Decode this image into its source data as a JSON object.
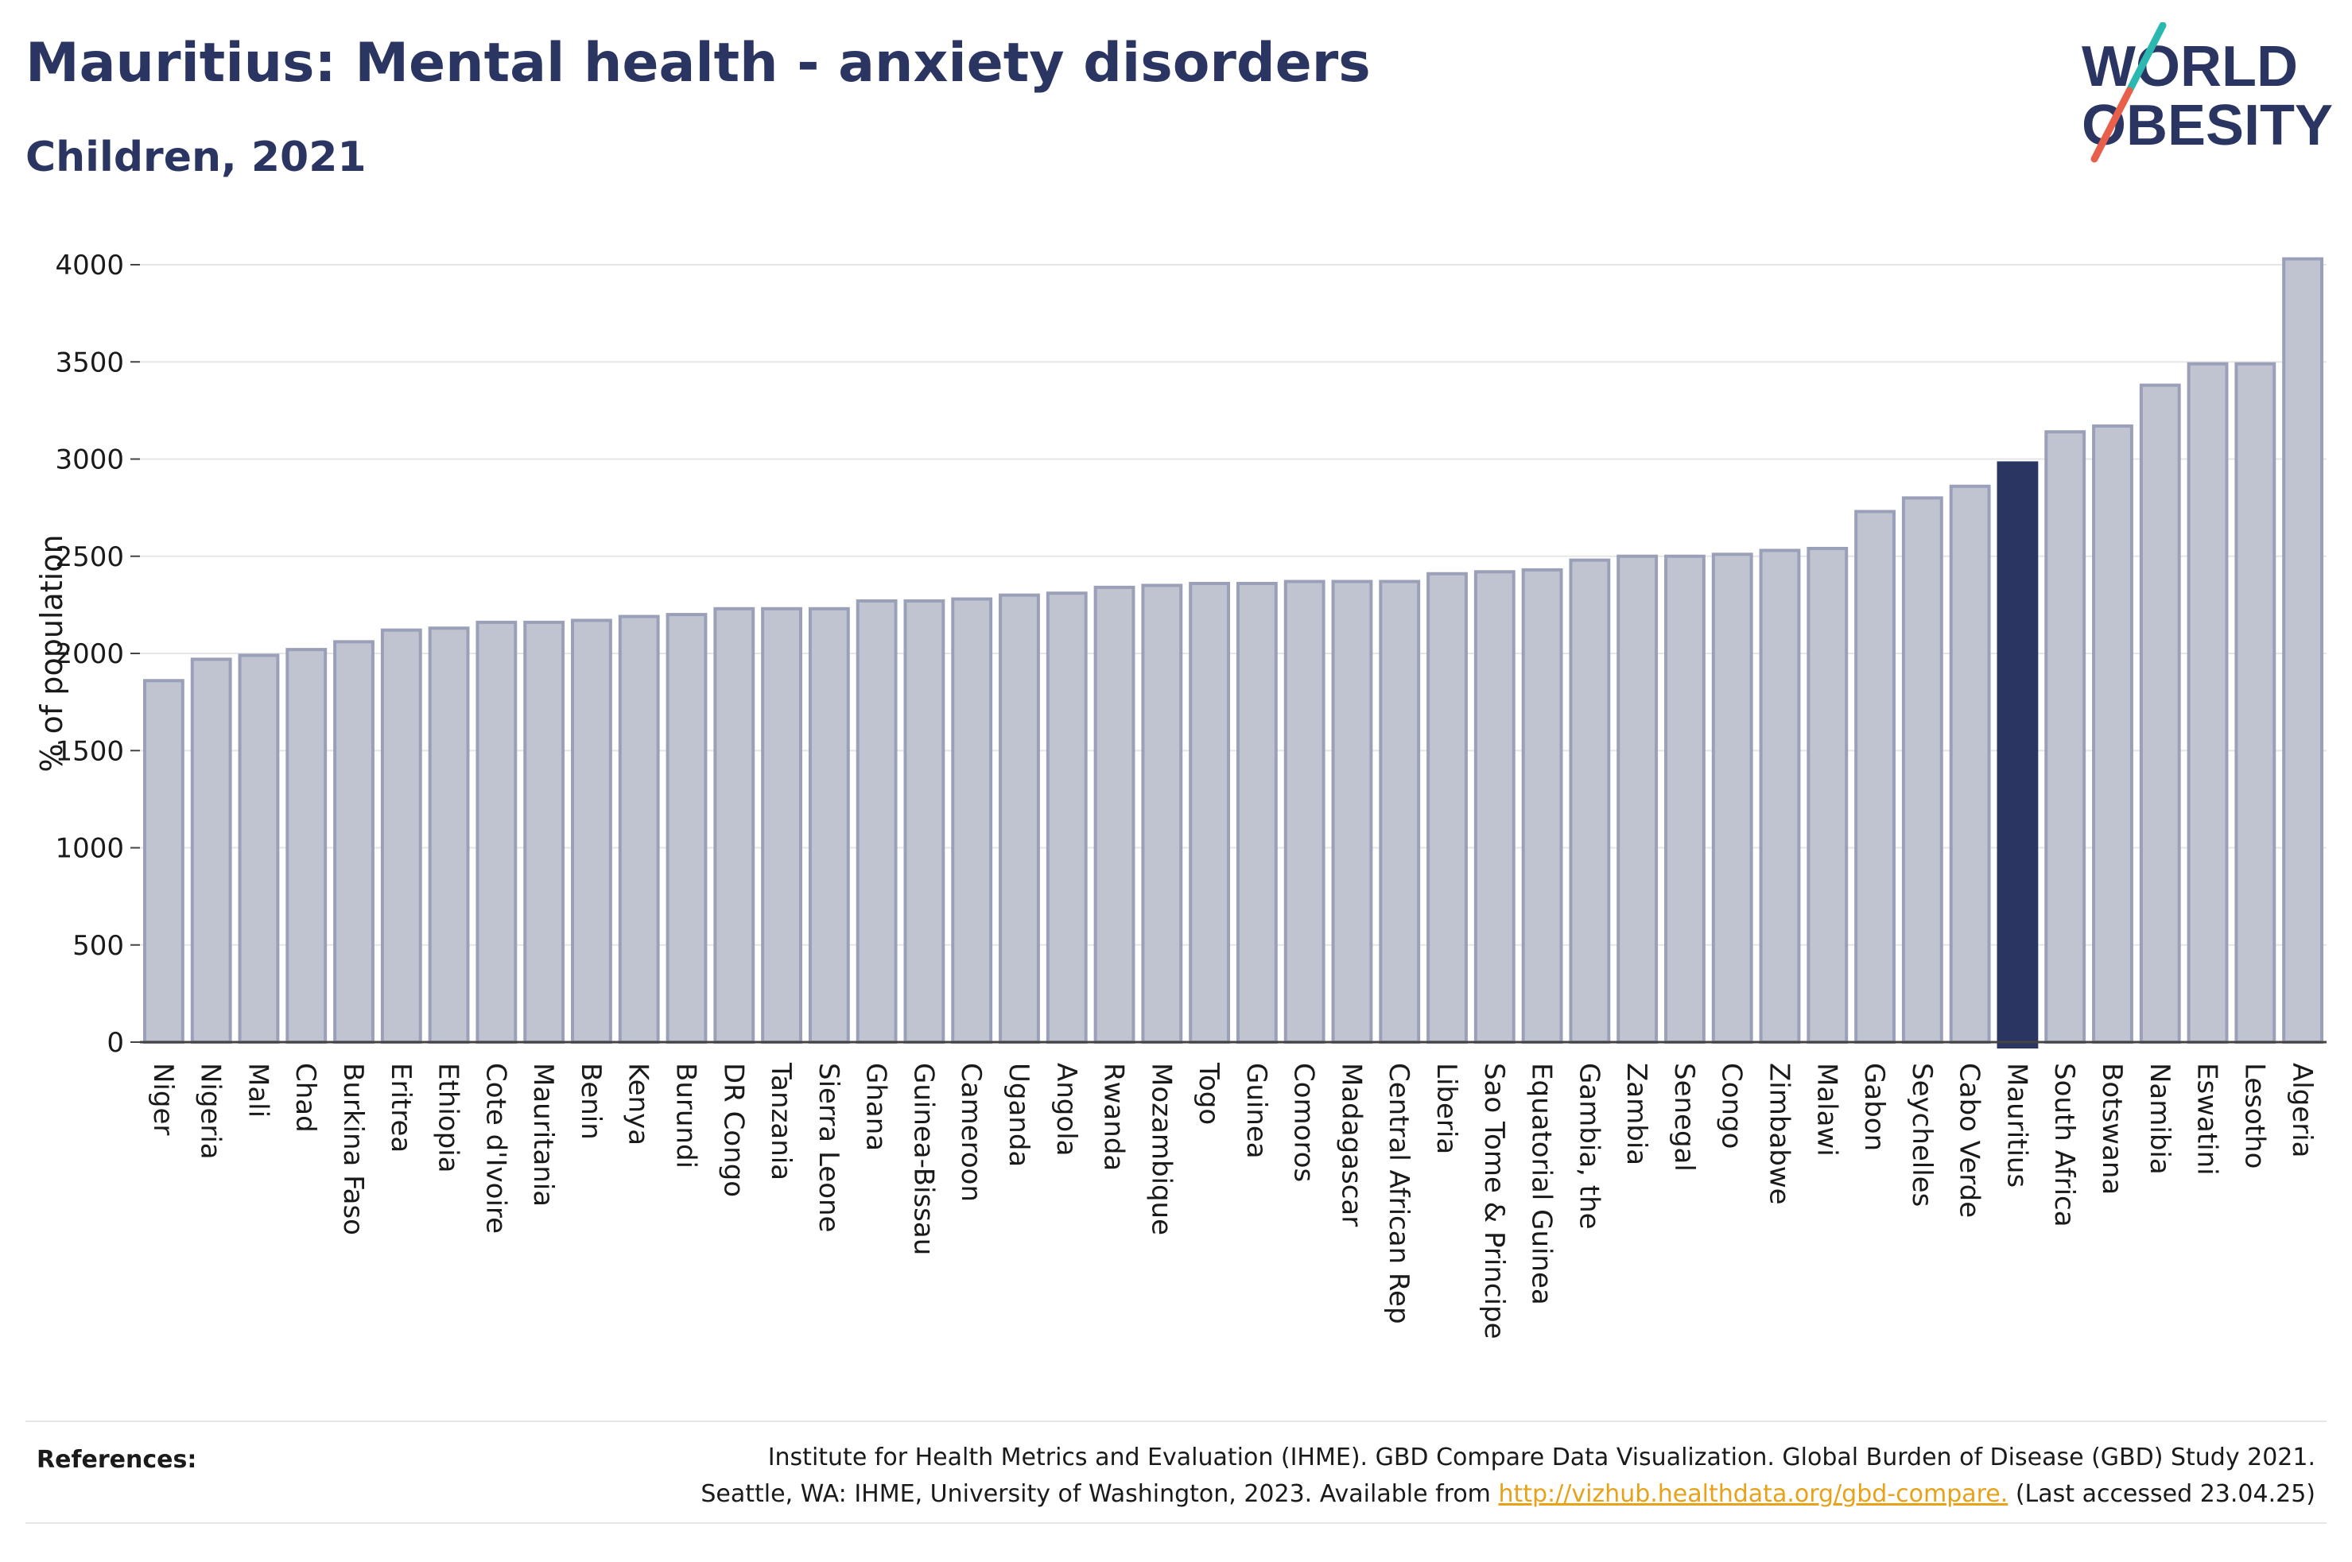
{
  "header": {
    "title": "Mauritius: Mental health - anxiety disorders",
    "subtitle": "Children, 2021"
  },
  "logo": {
    "line1": "WORLD",
    "line2": "OBESITY",
    "text_color": "#2b3562",
    "slash_color_top": "#2bb8b0",
    "slash_color_bottom": "#e8604c"
  },
  "colors": {
    "bar": "#c0c4d1",
    "bar_border": "#9aa0b8",
    "highlight": "#2b3562",
    "grid": "#e6e6e6",
    "axis": "#444444"
  },
  "chart_data": {
    "type": "bar",
    "title": "Mauritius: Mental health - anxiety disorders",
    "subtitle": "Children, 2021",
    "xlabel": "",
    "ylabel": "% of population",
    "ylim": [
      0,
      4000
    ],
    "yticks": [
      0,
      500,
      1000,
      1500,
      2000,
      2500,
      3000,
      3500,
      4000
    ],
    "grid": true,
    "highlight": "Mauritius",
    "categories": [
      "Niger",
      "Nigeria",
      "Mali",
      "Chad",
      "Burkina Faso",
      "Eritrea",
      "Ethiopia",
      "Cote d'Ivoire",
      "Mauritania",
      "Benin",
      "Kenya",
      "Burundi",
      "DR Congo",
      "Tanzania",
      "Sierra Leone",
      "Ghana",
      "Guinea-Bissau",
      "Cameroon",
      "Uganda",
      "Angola",
      "Rwanda",
      "Mozambique",
      "Togo",
      "Guinea",
      "Comoros",
      "Madagascar",
      "Central African Rep",
      "Liberia",
      "Sao Tome & Principe",
      "Equatorial Guinea",
      "Gambia, the",
      "Zambia",
      "Senegal",
      "Congo",
      "Zimbabwe",
      "Malawi",
      "Gabon",
      "Seychelles",
      "Cabo Verde",
      "Mauritius",
      "South Africa",
      "Botswana",
      "Namibia",
      "Eswatini",
      "Lesotho",
      "Algeria"
    ],
    "values": [
      1860,
      1970,
      1990,
      2020,
      2060,
      2120,
      2130,
      2160,
      2160,
      2170,
      2190,
      2200,
      2230,
      2230,
      2230,
      2270,
      2270,
      2280,
      2300,
      2310,
      2340,
      2350,
      2360,
      2360,
      2370,
      2370,
      2370,
      2410,
      2420,
      2430,
      2480,
      2500,
      2500,
      2510,
      2530,
      2540,
      2730,
      2800,
      2860,
      2980,
      3140,
      3170,
      3380,
      3490,
      3490,
      4030
    ]
  },
  "references": {
    "label": "References:",
    "line1": "Institute for Health Metrics and Evaluation (IHME). GBD Compare Data Visualization. Global Burden of Disease (GBD) Study 2021.",
    "line2_prefix": "Seattle, WA: IHME, University of Washington, 2023. Available from ",
    "link": "http://vizhub.healthdata.org/gbd-compare.",
    "line2_suffix": " (Last accessed 23.04.25)"
  }
}
